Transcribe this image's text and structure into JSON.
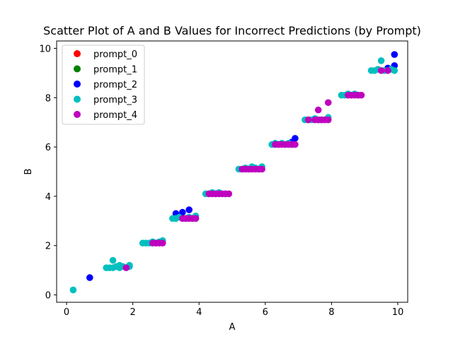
{
  "chart_data": {
    "type": "scatter",
    "title": "Scatter Plot of A and B Values for Incorrect Predictions (by Prompt)",
    "xlabel": "A",
    "ylabel": "B",
    "xlim": [
      -0.3,
      10.3
    ],
    "ylim": [
      -0.3,
      10.3
    ],
    "xticks": [
      0,
      2,
      4,
      6,
      8,
      10
    ],
    "yticks": [
      0,
      2,
      4,
      6,
      8,
      10
    ],
    "legend_position": "upper-left",
    "grid": false,
    "series": [
      {
        "name": "prompt_0",
        "color": "#ff0000",
        "points": []
      },
      {
        "name": "prompt_1",
        "color": "#008000",
        "points": []
      },
      {
        "name": "prompt_2",
        "color": "#0000ff",
        "points": [
          [
            0.7,
            0.7
          ],
          [
            3.3,
            3.3
          ],
          [
            3.5,
            3.35
          ],
          [
            3.7,
            3.45
          ],
          [
            6.9,
            6.35
          ],
          [
            6.8,
            6.2
          ],
          [
            9.9,
            9.75
          ],
          [
            9.9,
            9.3
          ],
          [
            9.7,
            9.2
          ]
        ]
      },
      {
        "name": "prompt_3",
        "color": "#00bfbf",
        "points": [
          [
            0.2,
            0.2
          ],
          [
            1.2,
            1.1
          ],
          [
            1.3,
            1.1
          ],
          [
            1.4,
            1.1
          ],
          [
            1.5,
            1.15
          ],
          [
            1.6,
            1.1
          ],
          [
            1.7,
            1.15
          ],
          [
            1.8,
            1.1
          ],
          [
            1.9,
            1.15
          ],
          [
            1.4,
            1.4
          ],
          [
            1.6,
            1.2
          ],
          [
            1.9,
            1.2
          ],
          [
            2.3,
            2.1
          ],
          [
            2.4,
            2.1
          ],
          [
            2.5,
            2.1
          ],
          [
            2.6,
            2.15
          ],
          [
            2.7,
            2.1
          ],
          [
            2.8,
            2.15
          ],
          [
            2.9,
            2.2
          ],
          [
            3.2,
            3.1
          ],
          [
            3.3,
            3.1
          ],
          [
            3.4,
            3.15
          ],
          [
            3.6,
            3.1
          ],
          [
            3.7,
            3.15
          ],
          [
            3.8,
            3.1
          ],
          [
            3.9,
            3.2
          ],
          [
            4.2,
            4.1
          ],
          [
            4.3,
            4.1
          ],
          [
            4.4,
            4.15
          ],
          [
            4.5,
            4.1
          ],
          [
            4.6,
            4.15
          ],
          [
            4.8,
            4.1
          ],
          [
            5.2,
            5.1
          ],
          [
            5.3,
            5.1
          ],
          [
            5.4,
            5.15
          ],
          [
            5.5,
            5.1
          ],
          [
            5.6,
            5.2
          ],
          [
            5.7,
            5.15
          ],
          [
            5.8,
            5.1
          ],
          [
            5.9,
            5.2
          ],
          [
            6.2,
            6.1
          ],
          [
            6.3,
            6.15
          ],
          [
            6.4,
            6.1
          ],
          [
            6.5,
            6.15
          ],
          [
            6.6,
            6.1
          ],
          [
            6.7,
            6.15
          ],
          [
            6.8,
            6.1
          ],
          [
            7.2,
            7.1
          ],
          [
            7.3,
            7.1
          ],
          [
            7.4,
            7.1
          ],
          [
            7.5,
            7.15
          ],
          [
            7.6,
            7.1
          ],
          [
            7.7,
            7.1
          ],
          [
            7.9,
            7.2
          ],
          [
            8.3,
            8.1
          ],
          [
            8.4,
            8.1
          ],
          [
            8.5,
            8.15
          ],
          [
            8.6,
            8.1
          ],
          [
            8.7,
            8.15
          ],
          [
            8.8,
            8.1
          ],
          [
            9.2,
            9.1
          ],
          [
            9.3,
            9.1
          ],
          [
            9.4,
            9.15
          ],
          [
            9.5,
            9.5
          ],
          [
            9.6,
            9.1
          ],
          [
            9.8,
            9.15
          ],
          [
            9.9,
            9.1
          ]
        ]
      },
      {
        "name": "prompt_4",
        "color": "#bf00bf",
        "points": [
          [
            1.8,
            1.1
          ],
          [
            2.6,
            2.1
          ],
          [
            2.7,
            2.1
          ],
          [
            2.8,
            2.1
          ],
          [
            2.9,
            2.1
          ],
          [
            3.5,
            3.1
          ],
          [
            3.6,
            3.1
          ],
          [
            3.7,
            3.1
          ],
          [
            3.8,
            3.1
          ],
          [
            3.9,
            3.1
          ],
          [
            4.3,
            4.1
          ],
          [
            4.4,
            4.1
          ],
          [
            4.5,
            4.1
          ],
          [
            4.6,
            4.1
          ],
          [
            4.7,
            4.1
          ],
          [
            4.8,
            4.1
          ],
          [
            4.9,
            4.1
          ],
          [
            5.3,
            5.1
          ],
          [
            5.4,
            5.1
          ],
          [
            5.5,
            5.1
          ],
          [
            5.6,
            5.1
          ],
          [
            5.7,
            5.1
          ],
          [
            5.8,
            5.1
          ],
          [
            5.9,
            5.1
          ],
          [
            6.3,
            6.1
          ],
          [
            6.4,
            6.1
          ],
          [
            6.5,
            6.1
          ],
          [
            6.6,
            6.1
          ],
          [
            6.7,
            6.1
          ],
          [
            6.8,
            6.1
          ],
          [
            6.9,
            6.1
          ],
          [
            7.3,
            7.1
          ],
          [
            7.5,
            7.1
          ],
          [
            7.6,
            7.1
          ],
          [
            7.7,
            7.1
          ],
          [
            7.8,
            7.1
          ],
          [
            7.9,
            7.1
          ],
          [
            7.6,
            7.5
          ],
          [
            7.9,
            7.8
          ],
          [
            8.5,
            8.1
          ],
          [
            8.6,
            8.1
          ],
          [
            8.7,
            8.1
          ],
          [
            8.8,
            8.1
          ],
          [
            8.9,
            8.1
          ],
          [
            9.5,
            9.1
          ],
          [
            9.7,
            9.1
          ]
        ]
      }
    ]
  }
}
